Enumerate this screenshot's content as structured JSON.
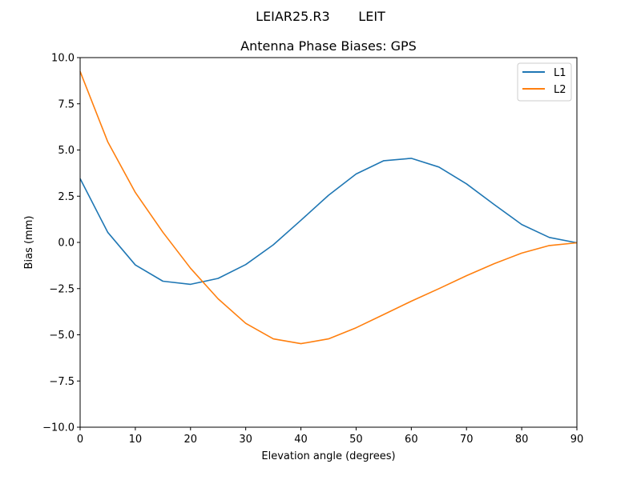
{
  "chart_data": {
    "type": "line",
    "suptitle": "LEIAR25.R3       LEIT",
    "title": "Antenna Phase Biases: GPS",
    "xlabel": "Elevation angle (degrees)",
    "ylabel": "Bias (mm)",
    "xlim": [
      0,
      90
    ],
    "ylim": [
      -10,
      10
    ],
    "xticks": [
      0,
      10,
      20,
      30,
      40,
      50,
      60,
      70,
      80,
      90
    ],
    "yticks": [
      -10.0,
      -7.5,
      -5.0,
      -2.5,
      0.0,
      2.5,
      5.0,
      7.5,
      10.0
    ],
    "ytick_labels": [
      "−10.0",
      "−7.5",
      "−5.0",
      "−2.5",
      "0.0",
      "2.5",
      "5.0",
      "7.5",
      "10.0"
    ],
    "grid": false,
    "legend_position": "top-right",
    "x": [
      0,
      5,
      10,
      15,
      20,
      25,
      30,
      35,
      40,
      45,
      50,
      55,
      60,
      65,
      70,
      75,
      80,
      85,
      90
    ],
    "series": [
      {
        "name": "L1",
        "color": "#1f77b4",
        "values": [
          3.45,
          0.55,
          -1.22,
          -2.1,
          -2.27,
          -1.95,
          -1.2,
          -0.13,
          1.2,
          2.55,
          3.7,
          4.42,
          4.55,
          4.08,
          3.17,
          2.05,
          0.97,
          0.27,
          -0.02
        ]
      },
      {
        "name": "L2",
        "color": "#ff7f0e",
        "values": [
          9.25,
          5.45,
          2.7,
          0.55,
          -1.4,
          -3.05,
          -4.38,
          -5.22,
          -5.48,
          -5.22,
          -4.62,
          -3.9,
          -3.18,
          -2.5,
          -1.8,
          -1.15,
          -0.58,
          -0.17,
          -0.02
        ]
      }
    ]
  }
}
